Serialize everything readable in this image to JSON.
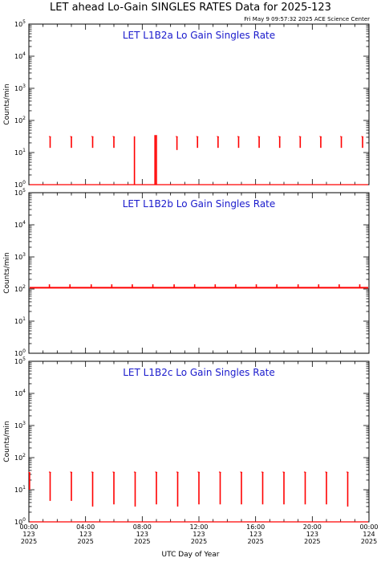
{
  "page": {
    "title": "LET ahead Lo-Gain SINGLES RATES Data for 2025-123",
    "timestamp": "Fri May  9 09:57:32 2025 ACE Science Center",
    "xlabel": "UTC Day of Year"
  },
  "colors": {
    "series": "#ff0000",
    "panel_title": "#1a1acc",
    "axis": "#000000"
  },
  "chart_data": [
    {
      "type": "line",
      "title": "LET L1B2a Lo Gain Singles Rate",
      "ylabel": "Counts/min",
      "yscale": "log",
      "ylim": [
        1,
        100000
      ],
      "ytick_labels": [
        {
          "base": "10",
          "exp": "0",
          "value": 1
        },
        {
          "base": "10",
          "exp": "1",
          "value": 10
        },
        {
          "base": "10",
          "exp": "2",
          "value": 100
        },
        {
          "base": "10",
          "exp": "3",
          "value": 1000
        },
        {
          "base": "10",
          "exp": "4",
          "value": 10000
        },
        {
          "base": "10",
          "exp": "5",
          "value": 100000
        }
      ],
      "xlim": [
        0,
        24
      ],
      "baseline": 1.0,
      "spikes": [
        {
          "x": 1.5,
          "top": 32,
          "bottom": 14
        },
        {
          "x": 3.0,
          "top": 32,
          "bottom": 14
        },
        {
          "x": 4.5,
          "top": 32,
          "bottom": 14
        },
        {
          "x": 6.0,
          "top": 32,
          "bottom": 14
        },
        {
          "x": 7.45,
          "top": 32,
          "bottom": 1
        },
        {
          "x": 8.9,
          "top": 35,
          "bottom": 1
        },
        {
          "x": 9.0,
          "top": 35,
          "bottom": 1
        },
        {
          "x": 10.45,
          "top": 32,
          "bottom": 12
        },
        {
          "x": 11.9,
          "top": 32,
          "bottom": 14
        },
        {
          "x": 13.35,
          "top": 32,
          "bottom": 14
        },
        {
          "x": 14.8,
          "top": 32,
          "bottom": 14
        },
        {
          "x": 16.25,
          "top": 32,
          "bottom": 14
        },
        {
          "x": 17.7,
          "top": 32,
          "bottom": 14
        },
        {
          "x": 19.15,
          "top": 32,
          "bottom": 14
        },
        {
          "x": 20.6,
          "top": 32,
          "bottom": 14
        },
        {
          "x": 22.05,
          "top": 32,
          "bottom": 14
        },
        {
          "x": 23.55,
          "top": 32,
          "bottom": 14
        }
      ]
    },
    {
      "type": "line",
      "title": "LET L1B2b Lo Gain Singles Rate",
      "ylabel": "Counts/min",
      "yscale": "log",
      "ylim": [
        1,
        100000
      ],
      "ytick_labels": [
        {
          "base": "10",
          "exp": "0",
          "value": 1
        },
        {
          "base": "10",
          "exp": "1",
          "value": 10
        },
        {
          "base": "10",
          "exp": "2",
          "value": 100
        },
        {
          "base": "10",
          "exp": "3",
          "value": 1000
        },
        {
          "base": "10",
          "exp": "4",
          "value": 10000
        },
        {
          "base": "10",
          "exp": "5",
          "value": 100000
        }
      ],
      "xlim": [
        0,
        24
      ],
      "baseline": 110,
      "spikes": [
        {
          "x": 1.45,
          "top": 140,
          "bottom": 110
        },
        {
          "x": 2.9,
          "top": 140,
          "bottom": 110
        },
        {
          "x": 4.4,
          "top": 140,
          "bottom": 110
        },
        {
          "x": 5.85,
          "top": 140,
          "bottom": 110
        },
        {
          "x": 7.3,
          "top": 140,
          "bottom": 110
        },
        {
          "x": 8.75,
          "top": 140,
          "bottom": 110
        },
        {
          "x": 10.25,
          "top": 140,
          "bottom": 110
        },
        {
          "x": 11.7,
          "top": 140,
          "bottom": 110
        },
        {
          "x": 13.15,
          "top": 140,
          "bottom": 110
        },
        {
          "x": 14.6,
          "top": 140,
          "bottom": 110
        },
        {
          "x": 16.05,
          "top": 140,
          "bottom": 110
        },
        {
          "x": 17.5,
          "top": 140,
          "bottom": 110
        },
        {
          "x": 19.0,
          "top": 140,
          "bottom": 110
        },
        {
          "x": 20.45,
          "top": 140,
          "bottom": 110
        },
        {
          "x": 21.9,
          "top": 140,
          "bottom": 110
        },
        {
          "x": 23.35,
          "top": 140,
          "bottom": 110
        }
      ]
    },
    {
      "type": "line",
      "title": "LET L1B2c Lo Gain Singles Rate",
      "ylabel": "Counts/min",
      "yscale": "log",
      "ylim": [
        1,
        100000
      ],
      "ytick_labels": [
        {
          "base": "10",
          "exp": "0",
          "value": 1
        },
        {
          "base": "10",
          "exp": "1",
          "value": 10
        },
        {
          "base": "10",
          "exp": "2",
          "value": 100
        },
        {
          "base": "10",
          "exp": "3",
          "value": 1000
        },
        {
          "base": "10",
          "exp": "4",
          "value": 10000
        },
        {
          "base": "10",
          "exp": "5",
          "value": 100000
        }
      ],
      "xlim": [
        0,
        24
      ],
      "baseline": 1.0,
      "spikes": [
        {
          "x": 0.05,
          "top": 35,
          "bottom": 10
        },
        {
          "x": 1.5,
          "top": 36,
          "bottom": 4.5
        },
        {
          "x": 3.0,
          "top": 36,
          "bottom": 4.5
        },
        {
          "x": 4.5,
          "top": 36,
          "bottom": 3.0
        },
        {
          "x": 6.0,
          "top": 36,
          "bottom": 3.5
        },
        {
          "x": 7.5,
          "top": 36,
          "bottom": 3.0
        },
        {
          "x": 9.0,
          "top": 36,
          "bottom": 3.5
        },
        {
          "x": 10.5,
          "top": 36,
          "bottom": 3.0
        },
        {
          "x": 12.0,
          "top": 36,
          "bottom": 3.5
        },
        {
          "x": 13.5,
          "top": 36,
          "bottom": 3.5
        },
        {
          "x": 15.0,
          "top": 36,
          "bottom": 3.5
        },
        {
          "x": 16.5,
          "top": 36,
          "bottom": 3.5
        },
        {
          "x": 18.0,
          "top": 36,
          "bottom": 3.5
        },
        {
          "x": 19.5,
          "top": 36,
          "bottom": 3.5
        },
        {
          "x": 21.0,
          "top": 36,
          "bottom": 3.5
        },
        {
          "x": 22.5,
          "top": 36,
          "bottom": 3.0
        }
      ]
    }
  ],
  "xticks": [
    {
      "time": "00:00",
      "doy": "123",
      "year": "2025",
      "hour": 0
    },
    {
      "time": "04:00",
      "doy": "123",
      "year": "2025",
      "hour": 4
    },
    {
      "time": "08:00",
      "doy": "123",
      "year": "2025",
      "hour": 8
    },
    {
      "time": "12:00",
      "doy": "123",
      "year": "2025",
      "hour": 12
    },
    {
      "time": "16:00",
      "doy": "123",
      "year": "2025",
      "hour": 16
    },
    {
      "time": "20:00",
      "doy": "123",
      "year": "2025",
      "hour": 20
    },
    {
      "time": "00:00",
      "doy": "124",
      "year": "2025",
      "hour": 24
    }
  ]
}
